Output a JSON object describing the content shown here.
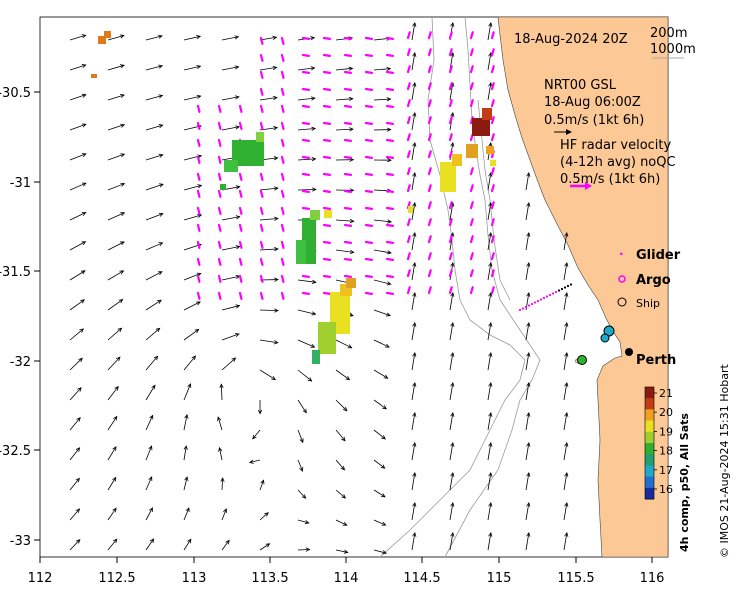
{
  "map": {
    "timestamp": "18-Aug-2024 20Z",
    "isobaths": [
      "200m",
      "1000m"
    ],
    "product": {
      "line1": "NRT00 GSL",
      "line2": "18-Aug 06:00Z",
      "line3": "0.5m/s (1kt 6h)"
    },
    "hf_radar": {
      "line1": "HF radar velocity",
      "line2": "(4-12h avg) noQC",
      "line3": "0.5m/s (1kt 6h)"
    },
    "legend": {
      "glider": "Glider",
      "argo": "Argo",
      "ship": "Ship"
    },
    "city": "Perth",
    "x_ticks": [
      "112",
      "112.5",
      "113",
      "113.5",
      "114",
      "114.5",
      "115",
      "115.5",
      "116"
    ],
    "y_ticks": [
      "-30.5",
      "-31",
      "-31.5",
      "-32",
      "-32.5",
      "-33"
    ],
    "colorbar": {
      "title": "4h comp, p50, All Sats",
      "ticks": [
        "21",
        "20",
        "19",
        "18",
        "17",
        "16"
      ],
      "colors": [
        "#8b1a10",
        "#c33c14",
        "#f0a020",
        "#e8e020",
        "#a0d030",
        "#30b030",
        "#20a070",
        "#20a8c8",
        "#2070d0",
        "#1a2aa0"
      ]
    },
    "credit": "© IMOS 21-Aug-2024 15:31 Hobart",
    "colors": {
      "land": "#fcc896",
      "hf_radar_arrow": "#ff00ff",
      "current_arrow": "#000000"
    }
  }
}
